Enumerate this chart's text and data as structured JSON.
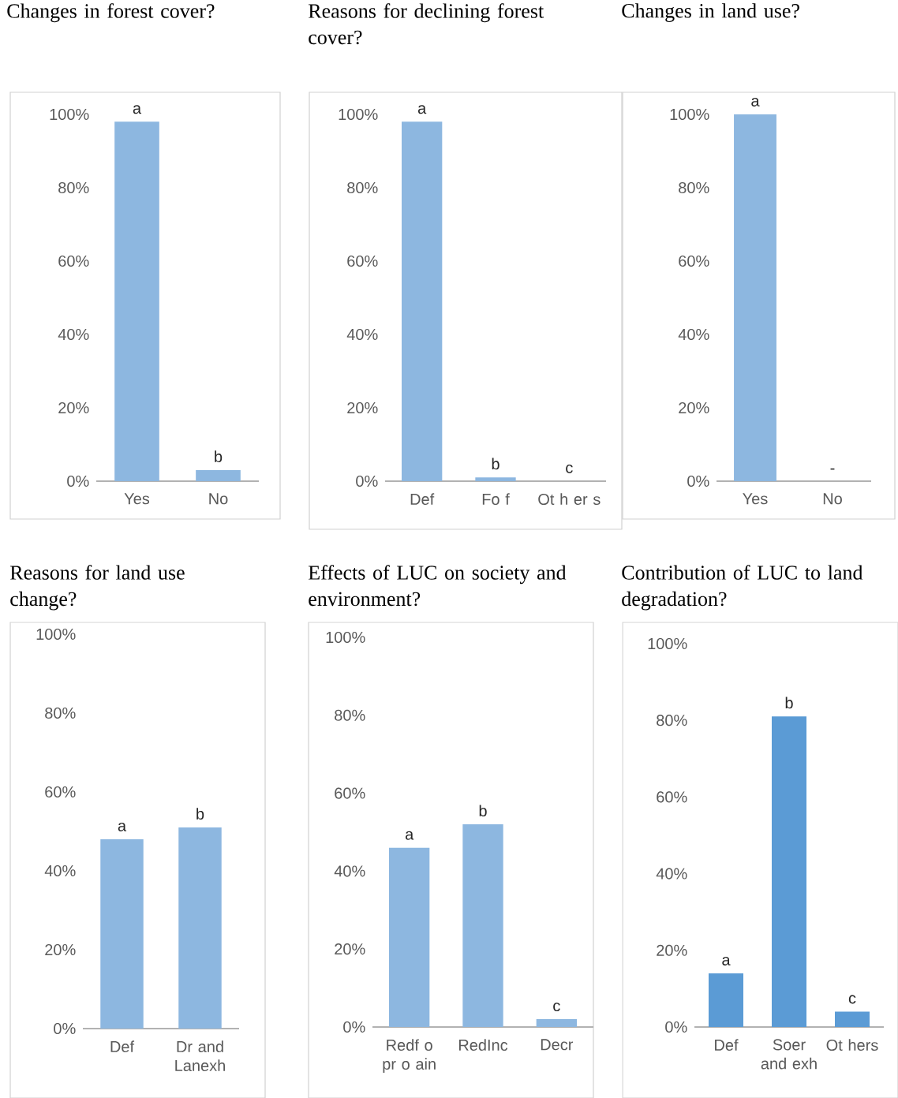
{
  "chart_data": [
    {
      "type": "bar",
      "title": "Changes in forest cover?",
      "categories": [
        "Yes",
        "No"
      ],
      "values": [
        98,
        3
      ],
      "value_labels": [
        "a",
        "b"
      ],
      "color": "#8db7e0",
      "ylim": [
        0,
        100
      ],
      "yticks": [
        {
          "value": 0,
          "label": "0%"
        },
        {
          "value": 20,
          "label": "20%"
        },
        {
          "value": 40,
          "label": "40%"
        },
        {
          "value": 60,
          "label": "60%"
        },
        {
          "value": 80,
          "label": "80%"
        },
        {
          "value": 100,
          "label": "100%"
        }
      ]
    },
    {
      "type": "bar",
      "title": "Reasons for declining forest cover?",
      "categories": [
        "Def",
        "Fo f",
        "Ot h er s"
      ],
      "values": [
        98,
        1,
        0
      ],
      "value_labels": [
        "a",
        "b",
        "c"
      ],
      "color": "#8db7e0",
      "ylim": [
        0,
        100
      ],
      "yticks": [
        {
          "value": 0,
          "label": "0%"
        },
        {
          "value": 20,
          "label": "20%"
        },
        {
          "value": 40,
          "label": "40%"
        },
        {
          "value": 60,
          "label": "60%"
        },
        {
          "value": 80,
          "label": "80%"
        },
        {
          "value": 100,
          "label": "100%"
        }
      ]
    },
    {
      "type": "bar",
      "title": "Changes in land use?",
      "categories": [
        "Yes",
        "No"
      ],
      "values": [
        100,
        0
      ],
      "value_labels": [
        "a",
        "-"
      ],
      "color": "#8db7e0",
      "ylim": [
        0,
        100
      ],
      "yticks": [
        {
          "value": 0,
          "label": "0%"
        },
        {
          "value": 20,
          "label": "20%"
        },
        {
          "value": 40,
          "label": "40%"
        },
        {
          "value": 60,
          "label": "60%"
        },
        {
          "value": 80,
          "label": "80%"
        },
        {
          "value": 100,
          "label": "100%"
        }
      ]
    },
    {
      "type": "bar",
      "title": "Reasons for land use change?",
      "categories": [
        "Def",
        "Dr and Lanexh"
      ],
      "values": [
        48,
        51
      ],
      "value_labels": [
        "a",
        "b"
      ],
      "color": "#8db7e0",
      "ylim": [
        0,
        100
      ],
      "yticks": [
        {
          "value": 0,
          "label": "0%"
        },
        {
          "value": 20,
          "label": "20%"
        },
        {
          "value": 40,
          "label": "40%"
        },
        {
          "value": 60,
          "label": "60%"
        },
        {
          "value": 80,
          "label": "80%"
        },
        {
          "value": 100,
          "label": "100%"
        }
      ]
    },
    {
      "type": "bar",
      "title": "Effects of LUC on society and environment?",
      "categories": [
        "Redf o pr o ain",
        "RedInc",
        "Decr"
      ],
      "values": [
        46,
        52,
        2
      ],
      "value_labels": [
        "a",
        "b",
        "c"
      ],
      "color": "#8db7e0",
      "ylim": [
        0,
        100
      ],
      "yticks": [
        {
          "value": 0,
          "label": "0%"
        },
        {
          "value": 20,
          "label": "20%"
        },
        {
          "value": 40,
          "label": "40%"
        },
        {
          "value": 60,
          "label": "60%"
        },
        {
          "value": 80,
          "label": "80%"
        },
        {
          "value": 100,
          "label": "100%"
        }
      ]
    },
    {
      "type": "bar",
      "title": "Contribution of LUC to land degradation?",
      "categories": [
        "Def",
        "Soer and exh",
        "Ot hers"
      ],
      "values": [
        14,
        81,
        4
      ],
      "value_labels": [
        "a",
        "b",
        "c"
      ],
      "color": "#5b9bd5",
      "ylim": [
        0,
        100
      ],
      "yticks": [
        {
          "value": 0,
          "label": "0%"
        },
        {
          "value": 20,
          "label": "20%"
        },
        {
          "value": 40,
          "label": "40%"
        },
        {
          "value": 60,
          "label": "60%"
        },
        {
          "value": 80,
          "label": "80%"
        },
        {
          "value": 100,
          "label": "100%"
        }
      ]
    }
  ]
}
